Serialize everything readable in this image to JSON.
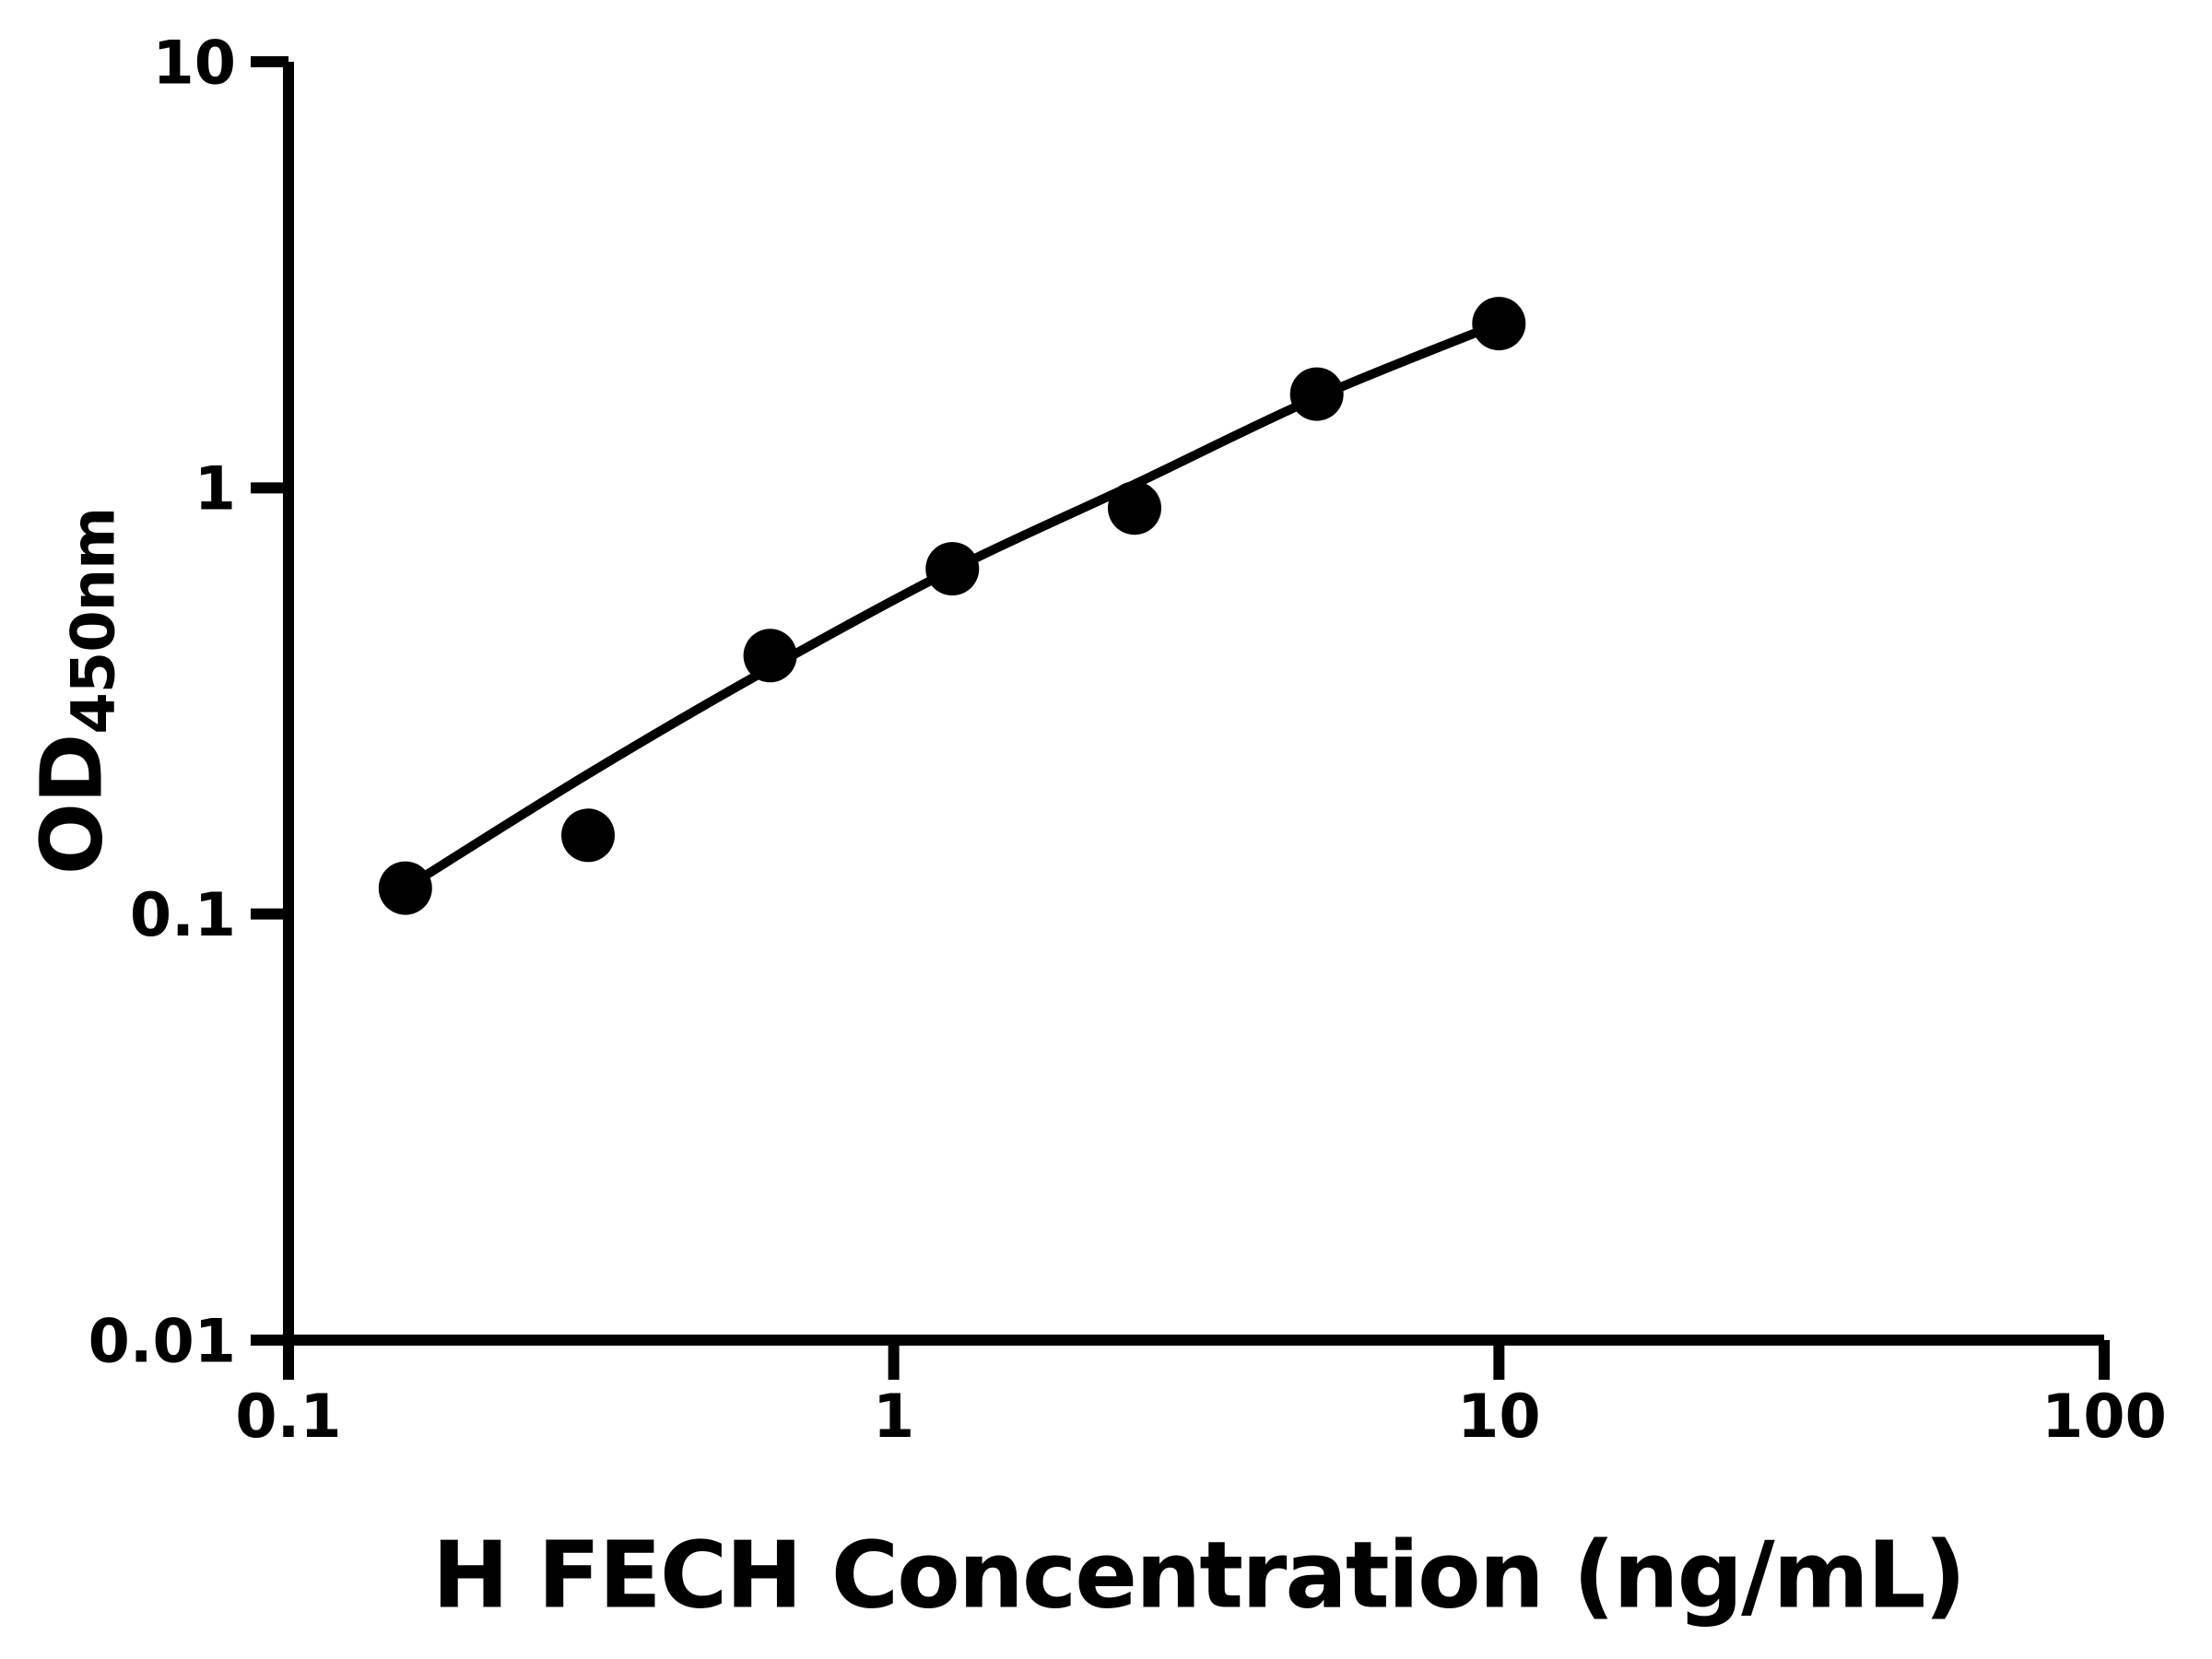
{
  "figure": {
    "background_color": "#ffffff",
    "ink_color": "#000000"
  },
  "chart_data": {
    "type": "scatter",
    "title": "",
    "xlabel": "H FECH Concentration (ng/mL)",
    "ylabel_main": "OD",
    "ylabel_sub": "450nm",
    "x_scale": "log",
    "y_scale": "log",
    "xlim": [
      0.1,
      100
    ],
    "ylim": [
      0.01,
      10
    ],
    "grid": false,
    "legend": "none",
    "x_ticks": [
      {
        "value": 0.1,
        "label": "0.1"
      },
      {
        "value": 1,
        "label": "1"
      },
      {
        "value": 10,
        "label": "10"
      },
      {
        "value": 100,
        "label": "100"
      }
    ],
    "y_ticks": [
      {
        "value": 0.01,
        "label": "0.01"
      },
      {
        "value": 0.1,
        "label": "0.1"
      },
      {
        "value": 1,
        "label": "1"
      },
      {
        "value": 10,
        "label": "10"
      }
    ],
    "series": [
      {
        "name": "standard-points",
        "type": "scatter",
        "marker": "circle",
        "color": "#000000",
        "points": [
          {
            "x": 0.156,
            "y": 0.115
          },
          {
            "x": 0.3125,
            "y": 0.153
          },
          {
            "x": 0.625,
            "y": 0.404
          },
          {
            "x": 1.25,
            "y": 0.646
          },
          {
            "x": 2.5,
            "y": 0.897
          },
          {
            "x": 5,
            "y": 1.66
          },
          {
            "x": 10,
            "y": 2.43
          }
        ]
      },
      {
        "name": "fit-curve",
        "type": "line",
        "color": "#000000",
        "points": [
          {
            "x": 0.156,
            "y": 0.115
          },
          {
            "x": 0.3125,
            "y": 0.213
          },
          {
            "x": 0.625,
            "y": 0.378
          },
          {
            "x": 1.25,
            "y": 0.643
          },
          {
            "x": 2.5,
            "y": 1.02
          },
          {
            "x": 5,
            "y": 1.63
          },
          {
            "x": 10,
            "y": 2.43
          }
        ]
      }
    ]
  }
}
